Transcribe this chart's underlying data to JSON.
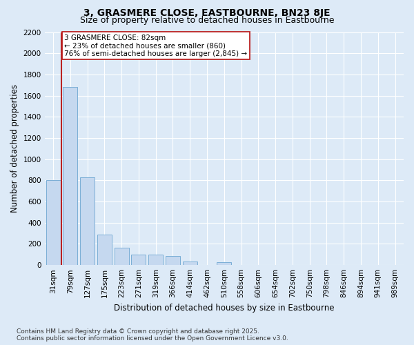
{
  "title": "3, GRASMERE CLOSE, EASTBOURNE, BN23 8JE",
  "subtitle": "Size of property relative to detached houses in Eastbourne",
  "xlabel": "Distribution of detached houses by size in Eastbourne",
  "ylabel": "Number of detached properties",
  "categories": [
    "31sqm",
    "79sqm",
    "127sqm",
    "175sqm",
    "223sqm",
    "271sqm",
    "319sqm",
    "366sqm",
    "414sqm",
    "462sqm",
    "510sqm",
    "558sqm",
    "606sqm",
    "654sqm",
    "702sqm",
    "750sqm",
    "798sqm",
    "846sqm",
    "894sqm",
    "941sqm",
    "989sqm"
  ],
  "values": [
    800,
    1680,
    830,
    290,
    165,
    100,
    100,
    85,
    35,
    0,
    30,
    0,
    0,
    0,
    0,
    0,
    0,
    0,
    0,
    0,
    0
  ],
  "bar_color": "#c5d8ef",
  "bar_edge_color": "#7aaed6",
  "vline_x_index": 1,
  "vline_color": "#bb2222",
  "annotation_text": "3 GRASMERE CLOSE: 82sqm\n← 23% of detached houses are smaller (860)\n76% of semi-detached houses are larger (2,845) →",
  "annotation_box_facecolor": "#ffffff",
  "annotation_box_edgecolor": "#bb2222",
  "ylim": [
    0,
    2200
  ],
  "yticks": [
    0,
    200,
    400,
    600,
    800,
    1000,
    1200,
    1400,
    1600,
    1800,
    2000,
    2200
  ],
  "bg_color": "#ddeaf7",
  "plot_bg_color": "#ddeaf7",
  "grid_color": "#ffffff",
  "footer_line1": "Contains HM Land Registry data © Crown copyright and database right 2025.",
  "footer_line2": "Contains public sector information licensed under the Open Government Licence v3.0.",
  "title_fontsize": 10,
  "subtitle_fontsize": 9,
  "axis_label_fontsize": 8.5,
  "tick_fontsize": 7.5,
  "annotation_fontsize": 7.5,
  "footer_fontsize": 6.5
}
